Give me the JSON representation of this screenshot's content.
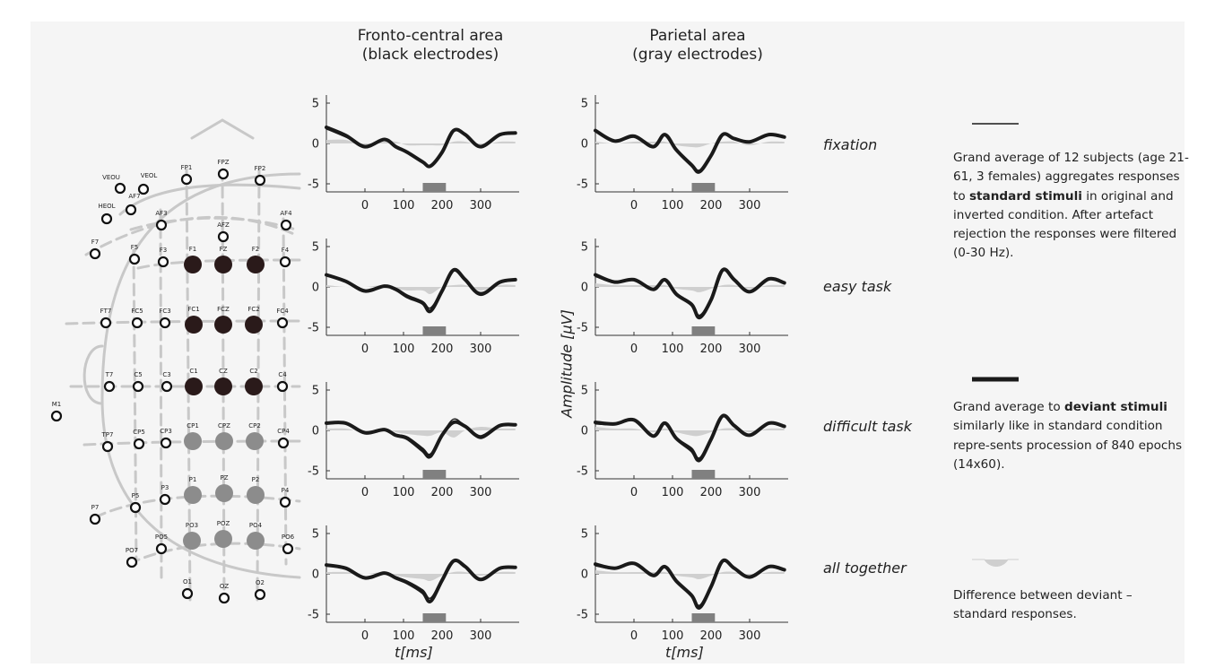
{
  "panel_titles": {
    "left": {
      "line1": "Fronto-central area",
      "line2": "(black electrodes)"
    },
    "right": {
      "line1": "Parietal area",
      "line2": "(gray electrodes)"
    }
  },
  "conditions": [
    "fixation",
    "easy task",
    "difficult task",
    "all together"
  ],
  "x_axis_label": "t[ms]",
  "y_axis_label": "Amplitude [μV]",
  "legend": {
    "standard": {
      "pre": "Grand average of 12 subjects (age 21-61, 3 females) aggregates responses to ",
      "bold": "standard stimuli",
      "post": " in original and inverted condition. After artefact rejection the responses were filtered (0-30 Hz)."
    },
    "deviant": {
      "pre": "Grand average to ",
      "bold": "deviant stimuli",
      "post": " similarly like in standard condition repre-sents procession of 840 epochs (14x60)."
    },
    "difference": {
      "text": "Difference between deviant – standard responses."
    }
  },
  "colors": {
    "black_electrode": "#2a1a1a",
    "gray_electrode": "#8c8c8c",
    "grid": "#c8c8c8",
    "trace": "#1a1a1a",
    "diff_fill": "#cfcfcf",
    "window_bar": "#808080"
  },
  "electrodes": {
    "eog": [
      "VEOU",
      "VEOL",
      "HEOL"
    ],
    "reference": [
      "M1"
    ],
    "fronto_central_black": [
      "F1",
      "FZ",
      "F2",
      "FC1",
      "FCZ",
      "FC2",
      "C1",
      "CZ",
      "C2"
    ],
    "parietal_gray": [
      "CP1",
      "CPZ",
      "CP2",
      "P1",
      "PZ",
      "P2",
      "PO3",
      "POZ",
      "PO4"
    ]
  },
  "chart_data": {
    "type": "line",
    "x_range_ms": [
      -100,
      400
    ],
    "xticks": [
      0,
      100,
      200,
      300
    ],
    "yticks": [
      -5,
      0,
      5
    ],
    "ylim": [
      -6,
      6
    ],
    "analysis_window_ms": [
      150,
      210
    ],
    "panels": [
      {
        "area": "fronto-central",
        "condition": "fixation",
        "x": [
          -100,
          -50,
          0,
          50,
          80,
          110,
          150,
          170,
          200,
          230,
          260,
          300,
          350,
          390
        ],
        "series": [
          {
            "name": "standard",
            "values": [
              1.8,
              0.8,
              -0.3,
              0.4,
              -0.5,
              -1.0,
              -2.2,
              -2.7,
              -1.0,
              1.5,
              1.0,
              -0.3,
              1.0,
              1.2
            ]
          },
          {
            "name": "deviant",
            "values": [
              2.0,
              1.0,
              -0.4,
              0.5,
              -0.4,
              -1.1,
              -2.3,
              -2.8,
              -1.1,
              1.6,
              1.1,
              -0.4,
              1.1,
              1.3
            ]
          }
        ]
      },
      {
        "area": "parietal",
        "condition": "fixation",
        "x": [
          -100,
          -50,
          0,
          50,
          80,
          110,
          150,
          170,
          200,
          230,
          260,
          300,
          350,
          390
        ],
        "series": [
          {
            "name": "standard",
            "values": [
              1.5,
              0.3,
              0.8,
              -0.5,
              1.0,
              -0.7,
              -2.5,
              -3.3,
              -1.5,
              1.0,
              0.5,
              0.3,
              1.0,
              0.7
            ]
          },
          {
            "name": "deviant",
            "values": [
              1.6,
              0.3,
              0.9,
              -0.4,
              1.1,
              -0.8,
              -2.7,
              -3.5,
              -1.5,
              1.1,
              0.6,
              0.2,
              1.1,
              0.8
            ]
          }
        ]
      },
      {
        "area": "fronto-central",
        "condition": "easy task",
        "x": [
          -100,
          -50,
          0,
          50,
          80,
          110,
          150,
          170,
          200,
          230,
          260,
          300,
          350,
          390
        ],
        "series": [
          {
            "name": "standard",
            "values": [
              1.4,
              0.7,
              -0.5,
              0.0,
              -0.2,
              -1.0,
              -1.8,
              -2.6,
              -0.5,
              2.0,
              0.8,
              -0.7,
              0.5,
              0.8
            ]
          },
          {
            "name": "deviant",
            "values": [
              1.5,
              0.7,
              -0.5,
              0.1,
              -0.3,
              -1.2,
              -2.0,
              -3.0,
              -0.5,
              2.1,
              0.9,
              -0.9,
              0.6,
              0.9
            ]
          }
        ]
      },
      {
        "area": "parietal",
        "condition": "easy task",
        "x": [
          -100,
          -50,
          0,
          50,
          80,
          110,
          150,
          170,
          200,
          230,
          260,
          300,
          350,
          390
        ],
        "series": [
          {
            "name": "standard",
            "values": [
              1.3,
              0.5,
              0.8,
              -0.4,
              0.8,
              -0.8,
              -2.0,
              -3.5,
              -1.5,
              2.0,
              0.8,
              -0.5,
              0.9,
              0.4
            ]
          },
          {
            "name": "deviant",
            "values": [
              1.5,
              0.6,
              0.9,
              -0.3,
              0.9,
              -0.9,
              -2.2,
              -3.8,
              -1.6,
              2.1,
              0.9,
              -0.6,
              1.0,
              0.5
            ]
          }
        ]
      },
      {
        "area": "fronto-central",
        "condition": "difficult task",
        "x": [
          -100,
          -50,
          0,
          50,
          80,
          110,
          150,
          170,
          200,
          230,
          260,
          300,
          350,
          390
        ],
        "series": [
          {
            "name": "standard",
            "values": [
              0.8,
              0.8,
              -0.2,
              0.0,
              -0.5,
              -0.8,
              -2.2,
              -2.9,
              -0.5,
              1.4,
              0.5,
              -1.0,
              0.5,
              0.6
            ]
          },
          {
            "name": "deviant",
            "values": [
              0.9,
              0.9,
              -0.3,
              0.1,
              -0.6,
              -1.0,
              -2.5,
              -3.2,
              -0.6,
              1.0,
              0.5,
              -0.8,
              0.6,
              0.7
            ]
          }
        ]
      },
      {
        "area": "parietal",
        "condition": "difficult task",
        "x": [
          -100,
          -50,
          0,
          50,
          80,
          110,
          150,
          170,
          200,
          230,
          260,
          300,
          350,
          390
        ],
        "series": [
          {
            "name": "standard",
            "values": [
              0.8,
              0.7,
              1.2,
              -0.6,
              0.8,
              -0.9,
              -2.2,
              -3.4,
              -1.0,
              1.7,
              0.5,
              -0.5,
              0.8,
              0.4
            ]
          },
          {
            "name": "deviant",
            "values": [
              1.0,
              0.8,
              1.3,
              -0.7,
              0.9,
              -1.0,
              -2.5,
              -3.7,
              -1.1,
              1.8,
              0.6,
              -0.6,
              0.9,
              0.5
            ]
          }
        ]
      },
      {
        "area": "fronto-central",
        "condition": "all together",
        "x": [
          -100,
          -50,
          0,
          50,
          80,
          110,
          150,
          170,
          200,
          230,
          260,
          300,
          350,
          390
        ],
        "series": [
          {
            "name": "standard",
            "values": [
              1.0,
              0.6,
              -0.5,
              0.0,
              -0.4,
              -0.9,
              -2.0,
              -3.0,
              -0.7,
              1.5,
              0.8,
              -0.6,
              0.6,
              0.7
            ]
          },
          {
            "name": "deviant",
            "values": [
              1.1,
              0.7,
              -0.5,
              0.1,
              -0.5,
              -1.1,
              -2.3,
              -3.4,
              -0.8,
              1.6,
              0.9,
              -0.7,
              0.7,
              0.8
            ]
          }
        ]
      },
      {
        "area": "parietal",
        "condition": "all together",
        "x": [
          -100,
          -50,
          0,
          50,
          80,
          110,
          150,
          170,
          200,
          230,
          260,
          300,
          350,
          390
        ],
        "series": [
          {
            "name": "standard",
            "values": [
              1.0,
              0.6,
              1.2,
              -0.3,
              0.8,
              -0.8,
              -2.5,
              -3.9,
              -1.5,
              1.5,
              0.6,
              -0.3,
              0.8,
              0.4
            ]
          },
          {
            "name": "deviant",
            "values": [
              1.2,
              0.7,
              1.3,
              -0.2,
              0.9,
              -0.9,
              -2.7,
              -4.2,
              -1.6,
              1.6,
              0.7,
              -0.4,
              0.9,
              0.5
            ]
          }
        ]
      }
    ]
  }
}
